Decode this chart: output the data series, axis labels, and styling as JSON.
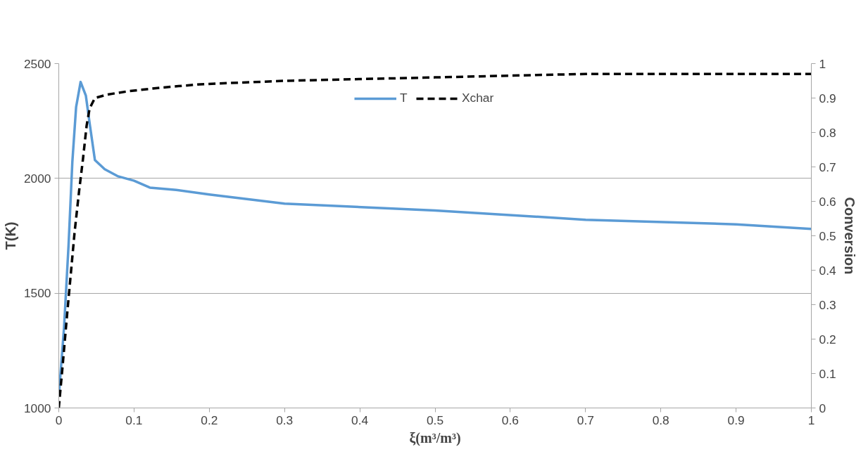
{
  "chart_data": {
    "type": "line",
    "xlabel": "ξ(m³/m³)",
    "ylabel": "T(K)",
    "y2label": "Conversion",
    "xlim": [
      0,
      1
    ],
    "xticks": [
      0,
      0.1,
      0.2,
      0.3,
      0.4,
      0.5,
      0.6,
      0.7,
      0.8,
      0.9,
      1
    ],
    "ylim": [
      1000,
      2500
    ],
    "yticks": [
      1000,
      1500,
      2000,
      2500
    ],
    "y2lim": [
      0,
      1
    ],
    "y2ticks": [
      0,
      0.1,
      0.2,
      0.3,
      0.4,
      0.5,
      0.6,
      0.7,
      0.8,
      0.9,
      1
    ],
    "grid": "y",
    "legend": "top",
    "marker": "none",
    "series": [
      {
        "name": "T",
        "color": "#5b9bd5",
        "line_style": "solid",
        "x": [
          0,
          0.007,
          0.013,
          0.018,
          0.023,
          0.029,
          0.036,
          0.041,
          0.048,
          0.061,
          0.078,
          0.1,
          0.121,
          0.156,
          0.2,
          0.3,
          0.5,
          0.7,
          0.9,
          1
        ],
        "values": [
          1050,
          1350,
          1710,
          2070,
          2310,
          2420,
          2360,
          2240,
          2080,
          2040,
          2010,
          1990,
          1960,
          1950,
          1930,
          1890,
          1860,
          1820,
          1800,
          1780
        ]
      },
      {
        "name": "Xchar",
        "color": "#000000",
        "line_style": "dashed",
        "axis": "y2",
        "x": [
          0,
          0.005,
          0.011,
          0.016,
          0.021,
          0.027,
          0.032,
          0.037,
          0.041,
          0.048,
          0.064,
          0.093,
          0.135,
          0.188,
          0.3,
          0.5,
          0.7,
          1
        ],
        "values": [
          0,
          0.12,
          0.27,
          0.39,
          0.51,
          0.63,
          0.72,
          0.82,
          0.87,
          0.9,
          0.91,
          0.92,
          0.93,
          0.94,
          0.95,
          0.96,
          0.97,
          0.97
        ]
      }
    ]
  }
}
